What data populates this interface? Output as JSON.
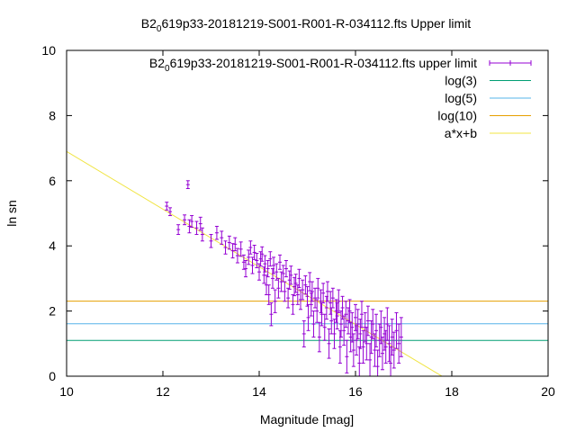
{
  "chart_data": {
    "type": "scatter",
    "title": {
      "pre": "B2",
      "sub": "0",
      "post": "619p33-20181219-S001-R001-R-034112.fts Upper limit"
    },
    "xlabel": "Magnitude [mag]",
    "ylabel": "ln sn",
    "xlim": [
      10,
      20
    ],
    "ylim": [
      0,
      10
    ],
    "xticks": [
      10,
      12,
      14,
      16,
      18,
      20
    ],
    "yticks": [
      0,
      2,
      4,
      6,
      8,
      10
    ],
    "grid": false,
    "legend_position": "top-right",
    "series": [
      {
        "name": {
          "pre": "B2",
          "sub": "0",
          "post": "619p33-20181219-S001-R001-R-034112.fts upper limit"
        },
        "kind": "errorbar",
        "color": "#9400d3",
        "points": [
          [
            12.08,
            5.22,
            0.12
          ],
          [
            12.15,
            5.05,
            0.12
          ],
          [
            12.32,
            4.5,
            0.15
          ],
          [
            12.45,
            4.8,
            0.15
          ],
          [
            12.52,
            5.88,
            0.12
          ],
          [
            12.55,
            4.6,
            0.2
          ],
          [
            12.6,
            4.75,
            0.18
          ],
          [
            12.7,
            4.55,
            0.2
          ],
          [
            12.78,
            4.68,
            0.2
          ],
          [
            12.82,
            4.35,
            0.2
          ],
          [
            13.0,
            4.15,
            0.2
          ],
          [
            13.12,
            4.4,
            0.2
          ],
          [
            13.22,
            4.25,
            0.2
          ],
          [
            13.3,
            3.95,
            0.2
          ],
          [
            13.38,
            4.1,
            0.2
          ],
          [
            13.45,
            3.85,
            0.22
          ],
          [
            13.5,
            4.05,
            0.2
          ],
          [
            13.55,
            3.7,
            0.22
          ],
          [
            13.62,
            3.9,
            0.22
          ],
          [
            13.68,
            3.5,
            0.22
          ],
          [
            13.72,
            3.3,
            0.25
          ],
          [
            13.78,
            3.65,
            0.22
          ],
          [
            13.82,
            3.95,
            0.2
          ],
          [
            13.86,
            3.4,
            0.25
          ],
          [
            13.9,
            3.8,
            0.22
          ],
          [
            13.95,
            3.55,
            0.22
          ],
          [
            14.0,
            3.2,
            0.25
          ],
          [
            14.03,
            3.6,
            0.22
          ],
          [
            14.06,
            3.75,
            0.22
          ],
          [
            14.1,
            3.1,
            0.25
          ],
          [
            14.12,
            3.45,
            0.25
          ],
          [
            14.15,
            2.8,
            0.3
          ],
          [
            14.18,
            3.3,
            0.25
          ],
          [
            14.2,
            2.5,
            0.3
          ],
          [
            14.23,
            3.6,
            0.22
          ],
          [
            14.25,
            1.9,
            0.35
          ],
          [
            14.28,
            3.0,
            0.3
          ],
          [
            14.3,
            3.4,
            0.25
          ],
          [
            14.33,
            2.3,
            0.35
          ],
          [
            14.36,
            3.2,
            0.25
          ],
          [
            14.4,
            2.7,
            0.3
          ],
          [
            14.43,
            3.5,
            0.22
          ],
          [
            14.46,
            2.9,
            0.3
          ],
          [
            14.5,
            3.15,
            0.25
          ],
          [
            14.53,
            2.6,
            0.3
          ],
          [
            14.56,
            3.3,
            0.25
          ],
          [
            14.6,
            2.4,
            0.3
          ],
          [
            14.63,
            2.95,
            0.28
          ],
          [
            14.66,
            3.1,
            0.28
          ],
          [
            14.7,
            2.2,
            0.3
          ],
          [
            14.73,
            2.75,
            0.28
          ],
          [
            14.76,
            2.85,
            0.28
          ],
          [
            14.8,
            2.5,
            0.3
          ],
          [
            14.83,
            3.0,
            0.28
          ],
          [
            14.86,
            2.35,
            0.3
          ],
          [
            14.9,
            2.65,
            0.3
          ],
          [
            14.93,
            1.3,
            0.4
          ],
          [
            14.96,
            2.8,
            0.28
          ],
          [
            15.0,
            2.45,
            0.3
          ],
          [
            15.02,
            1.8,
            0.4
          ],
          [
            15.05,
            2.9,
            0.28
          ],
          [
            15.08,
            2.2,
            0.35
          ],
          [
            15.1,
            2.6,
            0.3
          ],
          [
            15.13,
            1.6,
            0.4
          ],
          [
            15.16,
            2.4,
            0.3
          ],
          [
            15.2,
            2.0,
            0.35
          ],
          [
            15.22,
            2.7,
            0.3
          ],
          [
            15.25,
            1.2,
            0.45
          ],
          [
            15.28,
            2.3,
            0.35
          ],
          [
            15.3,
            1.9,
            0.35
          ],
          [
            15.33,
            2.55,
            0.3
          ],
          [
            15.36,
            1.5,
            0.4
          ],
          [
            15.4,
            2.1,
            0.35
          ],
          [
            15.42,
            2.6,
            0.3
          ],
          [
            15.45,
            1.0,
            0.45
          ],
          [
            15.48,
            2.25,
            0.35
          ],
          [
            15.5,
            1.7,
            0.4
          ],
          [
            15.53,
            2.4,
            0.3
          ],
          [
            15.56,
            1.3,
            0.45
          ],
          [
            15.6,
            2.0,
            0.35
          ],
          [
            15.62,
            1.85,
            0.4
          ],
          [
            15.65,
            2.3,
            0.35
          ],
          [
            15.68,
            0.9,
            0.5
          ],
          [
            15.7,
            1.6,
            0.4
          ],
          [
            15.73,
            2.1,
            0.35
          ],
          [
            15.76,
            1.4,
            0.45
          ],
          [
            15.8,
            1.9,
            0.4
          ],
          [
            15.82,
            0.6,
            0.5
          ],
          [
            15.85,
            1.7,
            0.4
          ],
          [
            15.88,
            2.0,
            0.35
          ],
          [
            15.9,
            1.2,
            0.45
          ],
          [
            15.93,
            1.5,
            0.45
          ],
          [
            15.96,
            0.8,
            0.5
          ],
          [
            16.0,
            1.8,
            0.4
          ],
          [
            16.02,
            1.1,
            0.45
          ],
          [
            16.05,
            1.6,
            0.45
          ],
          [
            16.08,
            0.4,
            0.5
          ],
          [
            16.1,
            1.3,
            0.45
          ],
          [
            16.13,
            1.9,
            0.4
          ],
          [
            16.16,
            0.9,
            0.5
          ],
          [
            16.2,
            1.5,
            0.45
          ],
          [
            16.23,
            1.0,
            0.5
          ],
          [
            16.26,
            1.7,
            0.45
          ],
          [
            16.3,
            0.5,
            0.5
          ],
          [
            16.33,
            1.2,
            0.5
          ],
          [
            16.36,
            1.6,
            0.45
          ],
          [
            16.4,
            0.8,
            0.5
          ],
          [
            16.43,
            1.4,
            0.5
          ],
          [
            16.46,
            0.3,
            0.5
          ],
          [
            16.5,
            1.1,
            0.5
          ],
          [
            16.53,
            1.5,
            0.5
          ],
          [
            16.56,
            0.7,
            0.5
          ],
          [
            16.6,
            1.3,
            0.5
          ],
          [
            16.63,
            0.9,
            0.5
          ],
          [
            16.66,
            1.6,
            0.5
          ],
          [
            16.7,
            1.0,
            0.55
          ],
          [
            16.73,
            0.4,
            0.5
          ],
          [
            16.76,
            1.2,
            0.55
          ],
          [
            16.8,
            0.8,
            0.55
          ],
          [
            16.85,
            1.4,
            0.55
          ],
          [
            16.9,
            1.0,
            0.6
          ],
          [
            16.95,
            1.2,
            0.6
          ]
        ]
      },
      {
        "name": "log(3)",
        "kind": "hline",
        "y": 1.0986,
        "color": "#009e73"
      },
      {
        "name": "log(5)",
        "kind": "hline",
        "y": 1.6094,
        "color": "#56b4e9"
      },
      {
        "name": "log(10)",
        "kind": "hline",
        "y": 2.3026,
        "color": "#e69f00"
      },
      {
        "name": "a*x+b",
        "kind": "line",
        "slope": -0.8846,
        "intercept": 15.7423,
        "color": "#f0e442"
      }
    ]
  }
}
